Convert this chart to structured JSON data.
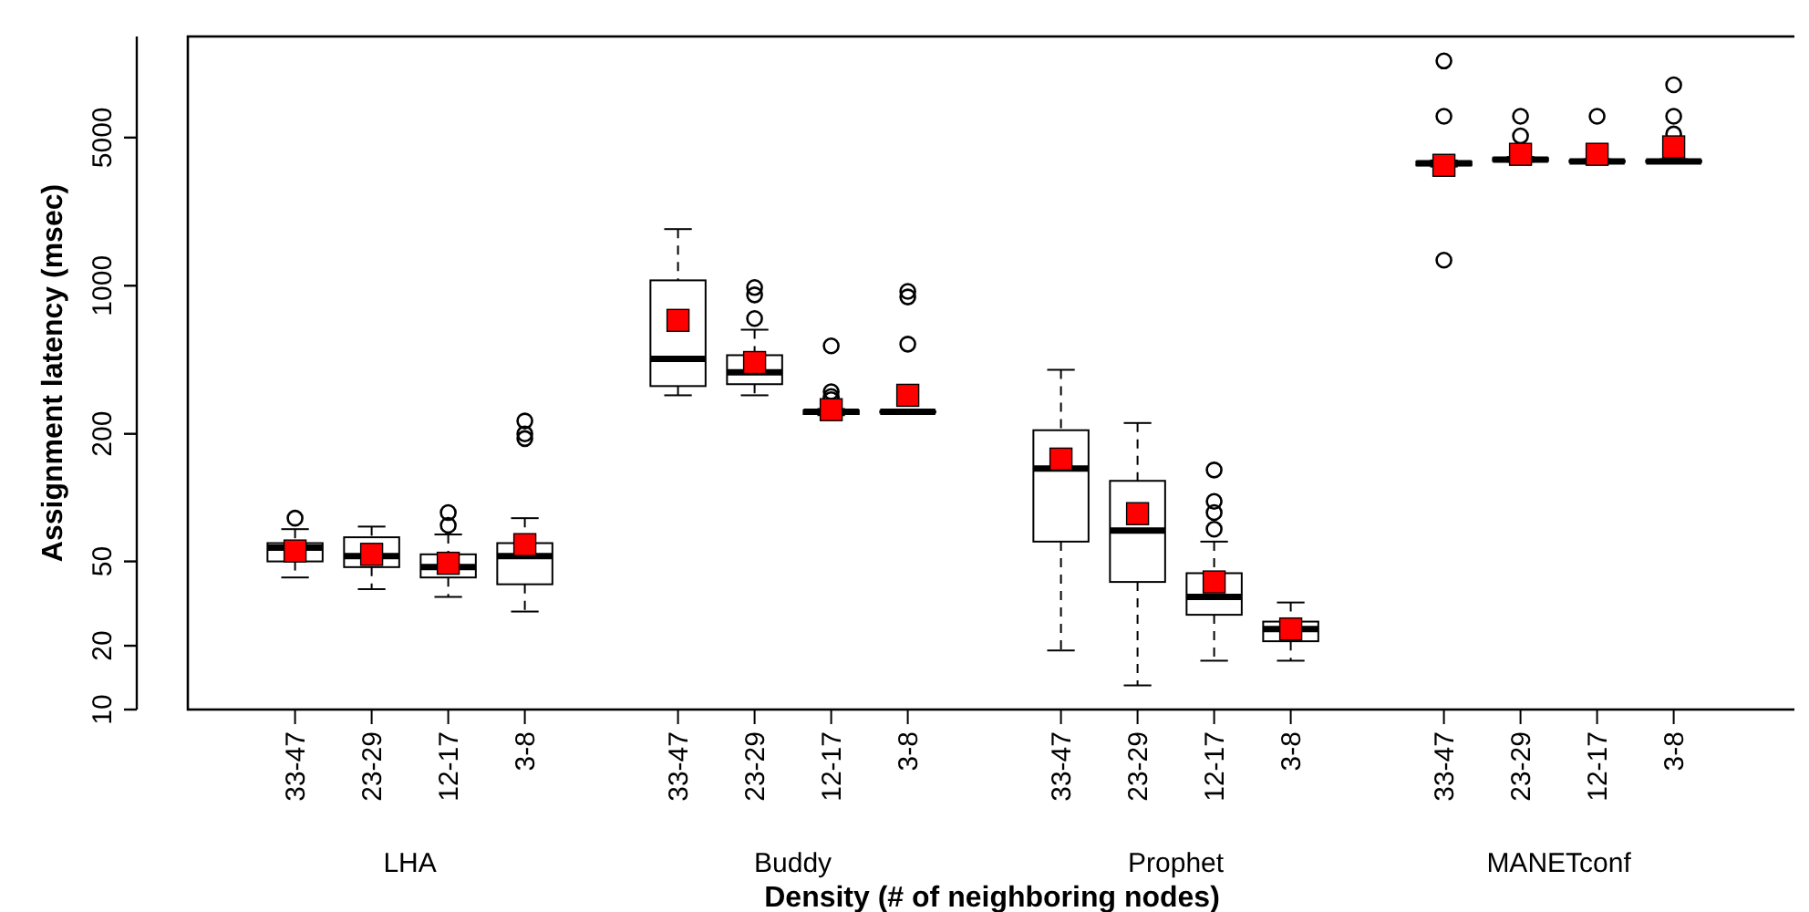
{
  "chart_data": {
    "type": "box",
    "xlabel": "Density (# of neighboring nodes)",
    "ylabel": "Assignment latency (msec)",
    "log": true,
    "grid": false,
    "color": "#000000",
    "categories": [
      "33-47",
      "23-29",
      "12-17",
      "3-8",
      "33-47",
      "23-29",
      "12-17",
      "3-8",
      "33-47",
      "23-29",
      "12-17",
      "3-8",
      "33-47",
      "23-29",
      "12-17",
      "3-8"
    ],
    "annotations": [
      "LHA",
      "Buddy",
      "Prophet",
      "MANETconf"
    ],
    "ylim": [
      10,
      15000
    ],
    "yticks": [
      10,
      20,
      50,
      200,
      1000,
      5000
    ],
    "boxes": [
      {
        "low": 42,
        "q1": 50,
        "median": 58,
        "q3": 61,
        "high": 71,
        "mean": 56,
        "outliers": [
          80
        ]
      },
      {
        "low": 37,
        "q1": 47,
        "median": 53,
        "q3": 65,
        "high": 73,
        "mean": 54
      },
      {
        "low": 34,
        "q1": 42,
        "median": 47,
        "q3": 54,
        "high": 67,
        "mean": 49,
        "outliers": [
          74,
          85
        ]
      },
      {
        "low": 29,
        "q1": 39,
        "median": 53,
        "q3": 61,
        "high": 80,
        "mean": 60,
        "outliers": [
          190,
          200,
          230
        ]
      },
      {
        "low": 304,
        "q1": 336,
        "median": 452,
        "q3": 1060,
        "high": 1850,
        "mean": 686
      },
      {
        "low": 304,
        "q1": 343,
        "median": 390,
        "q3": 470,
        "high": 620,
        "mean": 434,
        "outliers": [
          700,
          905,
          980
        ]
      },
      {
        "low": 245,
        "q1": 248,
        "median": 254,
        "q3": 258,
        "high": 262,
        "mean": 260,
        "outliers": [
          290,
          300,
          316,
          520
        ]
      },
      {
        "low": 250,
        "q1": 252,
        "median": 254,
        "q3": 256,
        "high": 258,
        "mean": 304,
        "outliers": [
          530,
          885,
          940
        ]
      },
      {
        "low": 19,
        "q1": 62,
        "median": 137,
        "q3": 208,
        "high": 401,
        "mean": 152
      },
      {
        "low": 13,
        "q1": 40,
        "median": 70,
        "q3": 120,
        "high": 225,
        "mean": 84
      },
      {
        "low": 17,
        "q1": 28,
        "median": 34,
        "q3": 44,
        "high": 62,
        "mean": 40,
        "outliers": [
          71,
          85,
          96,
          135
        ]
      },
      {
        "low": 17,
        "q1": 21,
        "median": 24,
        "q3": 26,
        "high": 32,
        "mean": 24
      },
      {
        "low": 3650,
        "q1": 3700,
        "median": 3780,
        "q3": 3850,
        "high": 3900,
        "mean": 3700,
        "outliers": [
          1320,
          6300,
          11500
        ]
      },
      {
        "low": 3850,
        "q1": 3880,
        "median": 3940,
        "q3": 4000,
        "high": 4050,
        "mean": 4170,
        "outliers": [
          5090,
          6300
        ]
      },
      {
        "low": 3800,
        "q1": 3830,
        "median": 3860,
        "q3": 3900,
        "high": 3950,
        "mean": 4170,
        "outliers": [
          6300
        ]
      },
      {
        "low": 3800,
        "q1": 3830,
        "median": 3860,
        "q3": 3900,
        "high": 3950,
        "mean": 4520,
        "outliers": [
          5200,
          6300,
          8870
        ]
      }
    ]
  }
}
